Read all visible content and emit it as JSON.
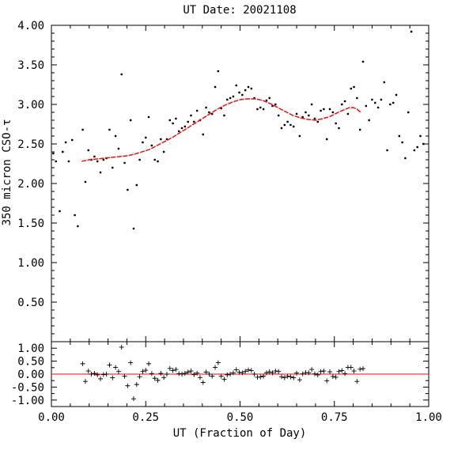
{
  "chart_data": [
    {
      "type": "scatter",
      "title": "UT Date: 20021108",
      "xlabel": "",
      "ylabel": "350 micron CSO-τ",
      "xlim": [
        0.0,
        1.0
      ],
      "ylim": [
        0.0,
        4.0
      ],
      "yticks": [
        "0.50",
        "1.00",
        "1.50",
        "2.00",
        "2.50",
        "3.00",
        "3.50",
        "4.00"
      ],
      "series": [
        {
          "kind": "points",
          "color": "#000000",
          "x": [
            0.005,
            0.012,
            0.022,
            0.03,
            0.038,
            0.046,
            0.055,
            0.062,
            0.07,
            0.083,
            0.09,
            0.098,
            0.106,
            0.114,
            0.122,
            0.13,
            0.138,
            0.146,
            0.154,
            0.162,
            0.17,
            0.178,
            0.186,
            0.194,
            0.202,
            0.21,
            0.218,
            0.226,
            0.234,
            0.242,
            0.25,
            0.258,
            0.266,
            0.274,
            0.282,
            0.29,
            0.298,
            0.306,
            0.314,
            0.322,
            0.33,
            0.338,
            0.346,
            0.354,
            0.362,
            0.37,
            0.378,
            0.386,
            0.394,
            0.402,
            0.41,
            0.418,
            0.426,
            0.434,
            0.442,
            0.45,
            0.458,
            0.466,
            0.474,
            0.482,
            0.49,
            0.498,
            0.506,
            0.514,
            0.522,
            0.53,
            0.538,
            0.546,
            0.554,
            0.562,
            0.57,
            0.578,
            0.586,
            0.594,
            0.602,
            0.61,
            0.618,
            0.626,
            0.634,
            0.642,
            0.65,
            0.658,
            0.666,
            0.674,
            0.682,
            0.69,
            0.698,
            0.706,
            0.714,
            0.722,
            0.73,
            0.738,
            0.746,
            0.754,
            0.762,
            0.77,
            0.778,
            0.786,
            0.794,
            0.802,
            0.81,
            0.818,
            0.826,
            0.834,
            0.842,
            0.85,
            0.858,
            0.866,
            0.874,
            0.882,
            0.89,
            0.898,
            0.906,
            0.914,
            0.922,
            0.93,
            0.938,
            0.946,
            0.954,
            0.962,
            0.97,
            0.978,
            0.986
          ],
          "y": [
            2.38,
            2.28,
            1.65,
            2.4,
            2.52,
            2.28,
            2.55,
            1.6,
            1.46,
            2.68,
            2.02,
            2.42,
            2.3,
            2.34,
            2.28,
            2.14,
            2.3,
            2.32,
            2.68,
            2.2,
            2.6,
            2.44,
            3.38,
            2.26,
            1.92,
            2.8,
            1.43,
            1.98,
            2.3,
            2.52,
            2.58,
            2.84,
            2.48,
            2.3,
            2.28,
            2.56,
            2.4,
            2.56,
            2.8,
            2.76,
            2.82,
            2.66,
            2.7,
            2.72,
            2.78,
            2.86,
            2.78,
            2.92,
            2.8,
            2.62,
            2.96,
            2.9,
            2.88,
            3.22,
            3.42,
            2.95,
            2.86,
            3.06,
            3.08,
            3.1,
            3.24,
            3.15,
            3.12,
            3.18,
            3.22,
            3.2,
            3.08,
            2.94,
            2.96,
            2.94,
            3.05,
            3.08,
            2.98,
            3.0,
            2.86,
            2.7,
            2.74,
            2.78,
            2.74,
            2.72,
            2.88,
            2.6,
            2.84,
            2.9,
            2.86,
            3.0,
            2.82,
            2.78,
            2.92,
            2.94,
            2.56,
            2.94,
            2.9,
            2.76,
            2.7,
            3.0,
            3.04,
            2.88,
            3.2,
            3.22,
            3.08,
            2.68,
            3.54,
            2.98,
            2.8,
            3.06,
            3.02,
            2.96,
            3.06,
            3.28,
            2.42,
            3.0,
            3.02,
            3.12,
            2.6,
            2.52,
            2.32,
            2.9,
            3.92,
            2.42,
            2.46,
            2.6,
            2.5
          ]
        },
        {
          "kind": "fit-curve",
          "color": "#ff0000",
          "x": [
            0.08,
            0.1,
            0.12,
            0.14,
            0.16,
            0.18,
            0.2,
            0.22,
            0.24,
            0.26,
            0.28,
            0.3,
            0.32,
            0.34,
            0.36,
            0.38,
            0.4,
            0.42,
            0.44,
            0.46,
            0.48,
            0.5,
            0.52,
            0.54,
            0.56,
            0.58,
            0.6,
            0.62,
            0.64,
            0.66,
            0.68,
            0.7,
            0.72,
            0.74,
            0.76,
            0.78,
            0.79,
            0.8,
            0.81,
            0.82
          ],
          "y": [
            2.28,
            2.3,
            2.31,
            2.32,
            2.33,
            2.34,
            2.35,
            2.37,
            2.4,
            2.43,
            2.48,
            2.53,
            2.58,
            2.64,
            2.7,
            2.76,
            2.82,
            2.88,
            2.94,
            2.99,
            3.03,
            3.06,
            3.07,
            3.07,
            3.05,
            3.01,
            2.96,
            2.91,
            2.86,
            2.83,
            2.81,
            2.8,
            2.82,
            2.85,
            2.9,
            2.94,
            2.96,
            2.96,
            2.94,
            2.9
          ]
        }
      ]
    },
    {
      "type": "scatter",
      "title": "",
      "xlabel": "UT (Fraction of Day)",
      "ylabel": "",
      "xlim": [
        0.0,
        1.0
      ],
      "ylim": [
        -1.25,
        1.25
      ],
      "xticks": [
        "0.00",
        "0.25",
        "0.50",
        "0.75",
        "1.00"
      ],
      "yticks": [
        "-1.00",
        "-0.50",
        "0.00",
        "0.50",
        "1.00"
      ],
      "series": [
        {
          "kind": "residuals",
          "color": "#000000",
          "x": [
            0.083,
            0.09,
            0.098,
            0.106,
            0.114,
            0.122,
            0.13,
            0.138,
            0.146,
            0.154,
            0.162,
            0.17,
            0.178,
            0.186,
            0.194,
            0.202,
            0.21,
            0.218,
            0.226,
            0.234,
            0.242,
            0.25,
            0.258,
            0.266,
            0.274,
            0.282,
            0.29,
            0.298,
            0.306,
            0.314,
            0.322,
            0.33,
            0.338,
            0.346,
            0.354,
            0.362,
            0.37,
            0.378,
            0.386,
            0.394,
            0.402,
            0.41,
            0.418,
            0.426,
            0.434,
            0.442,
            0.45,
            0.458,
            0.466,
            0.474,
            0.482,
            0.49,
            0.498,
            0.506,
            0.514,
            0.522,
            0.53,
            0.538,
            0.546,
            0.554,
            0.562,
            0.57,
            0.578,
            0.586,
            0.594,
            0.602,
            0.61,
            0.618,
            0.626,
            0.634,
            0.642,
            0.65,
            0.658,
            0.666,
            0.674,
            0.682,
            0.69,
            0.698,
            0.706,
            0.714,
            0.722,
            0.73,
            0.738,
            0.746,
            0.754,
            0.762,
            0.77,
            0.778,
            0.786,
            0.794,
            0.802,
            0.81,
            0.818,
            0.826
          ],
          "y": [
            0.4,
            -0.28,
            0.12,
            0.0,
            0.03,
            -0.03,
            -0.18,
            -0.02,
            0.0,
            0.35,
            -0.14,
            0.26,
            0.1,
            1.04,
            -0.08,
            -0.45,
            0.44,
            -0.95,
            -0.4,
            -0.1,
            0.1,
            0.15,
            0.4,
            0.02,
            -0.16,
            -0.24,
            0.03,
            -0.13,
            0.0,
            0.22,
            0.14,
            0.18,
            0.02,
            0.0,
            0.03,
            0.08,
            0.12,
            -0.02,
            0.04,
            -0.13,
            -0.32,
            0.08,
            0.0,
            -0.08,
            0.26,
            0.44,
            -0.08,
            -0.2,
            -0.03,
            0.0,
            0.05,
            0.17,
            0.07,
            0.05,
            0.11,
            0.16,
            0.14,
            0.0,
            -0.12,
            -0.11,
            -0.08,
            0.05,
            0.09,
            0.05,
            0.12,
            0.1,
            -0.1,
            -0.14,
            -0.08,
            -0.11,
            -0.14,
            0.04,
            -0.22,
            0.01,
            0.06,
            0.05,
            0.18,
            0.01,
            -0.03,
            0.1,
            0.12,
            -0.26,
            0.09,
            -0.09,
            -0.12,
            0.1,
            0.14,
            0.02,
            0.26,
            0.26,
            0.12,
            -0.28,
            0.19,
            0.21
          ]
        },
        {
          "kind": "zero-line",
          "color": "#ff0000",
          "y": 0.0
        }
      ]
    }
  ]
}
